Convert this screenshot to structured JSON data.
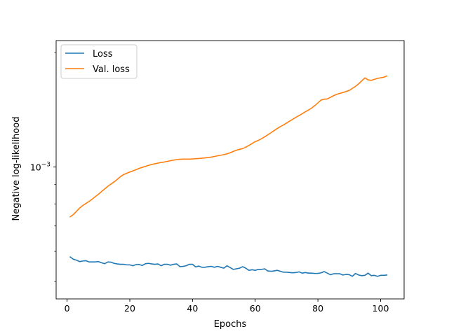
{
  "chart_data": {
    "type": "line",
    "title": "",
    "xlabel": "Epochs",
    "ylabel": "Negative log-likelihood",
    "xlim": [
      -3.5,
      107.5
    ],
    "ylim": [
      0.00045,
      0.00215
    ],
    "yscale": "log",
    "grid": false,
    "legend_position": "top-left",
    "x_ticks": [
      0,
      20,
      40,
      60,
      80,
      100
    ],
    "y_ticks": [
      {
        "value": 0.001,
        "base": "10",
        "exponent": "−3"
      }
    ],
    "series": [
      {
        "name": "Loss",
        "color": "#1f77b4",
        "x": [
          1,
          2,
          3,
          4,
          5,
          6,
          7,
          8,
          9,
          10,
          11,
          12,
          13,
          14,
          15,
          16,
          17,
          18,
          19,
          20,
          21,
          22,
          23,
          24,
          25,
          26,
          27,
          28,
          29,
          30,
          31,
          32,
          33,
          34,
          35,
          36,
          37,
          38,
          39,
          40,
          41,
          42,
          43,
          44,
          45,
          46,
          47,
          48,
          49,
          50,
          51,
          52,
          53,
          54,
          55,
          56,
          57,
          58,
          59,
          60,
          61,
          62,
          63,
          64,
          65,
          66,
          67,
          68,
          69,
          70,
          71,
          72,
          73,
          74,
          75,
          76,
          77,
          78,
          79,
          80,
          81,
          82,
          83,
          84,
          85,
          86,
          87,
          88,
          89,
          90,
          91,
          92,
          93,
          94,
          95,
          96,
          97,
          98,
          99,
          100,
          101,
          102
        ],
        "values": [
          0.00058,
          0.000572,
          0.000569,
          0.000564,
          0.000566,
          0.000567,
          0.000563,
          0.000563,
          0.000563,
          0.000564,
          0.00056,
          0.000557,
          0.000563,
          0.000562,
          0.000558,
          0.000556,
          0.000555,
          0.000555,
          0.000553,
          0.000553,
          0.00055,
          0.000554,
          0.000554,
          0.000551,
          0.000557,
          0.000558,
          0.000556,
          0.000555,
          0.000556,
          0.00055,
          0.000555,
          0.000555,
          0.000552,
          0.000555,
          0.000556,
          0.000547,
          0.000548,
          0.00055,
          0.000555,
          0.000555,
          0.000546,
          0.000549,
          0.000545,
          0.000545,
          0.000547,
          0.000548,
          0.000545,
          0.000548,
          0.000545,
          0.000542,
          0.00055,
          0.000544,
          0.000538,
          0.00054,
          0.000542,
          0.000547,
          0.000542,
          0.000535,
          0.000537,
          0.000535,
          0.000538,
          0.000538,
          0.00054,
          0.000533,
          0.000532,
          0.000533,
          0.000535,
          0.000532,
          0.000529,
          0.000529,
          0.000528,
          0.000527,
          0.000528,
          0.00053,
          0.000526,
          0.000528,
          0.000526,
          0.000526,
          0.000525,
          0.000525,
          0.000527,
          0.000531,
          0.000526,
          0.000521,
          0.000524,
          0.000524,
          0.000524,
          0.00052,
          0.000522,
          0.000521,
          0.000516,
          0.000525,
          0.00052,
          0.000518,
          0.000519,
          0.000526,
          0.000518,
          0.000519,
          0.000516,
          0.000519,
          0.000519,
          0.00052
        ]
      },
      {
        "name": "Val. loss",
        "color": "#ff7f0e",
        "x": [
          1,
          2,
          3,
          4,
          5,
          6,
          7,
          8,
          9,
          10,
          11,
          12,
          13,
          14,
          15,
          16,
          17,
          18,
          19,
          20,
          21,
          22,
          23,
          24,
          25,
          26,
          27,
          28,
          29,
          30,
          31,
          32,
          33,
          34,
          35,
          36,
          37,
          38,
          39,
          40,
          41,
          42,
          43,
          44,
          45,
          46,
          47,
          48,
          49,
          50,
          51,
          52,
          53,
          54,
          55,
          56,
          57,
          58,
          59,
          60,
          61,
          62,
          63,
          64,
          65,
          66,
          67,
          68,
          69,
          70,
          71,
          72,
          73,
          74,
          75,
          76,
          77,
          78,
          79,
          80,
          81,
          82,
          83,
          84,
          85,
          86,
          87,
          88,
          89,
          90,
          91,
          92,
          93,
          94,
          95,
          96,
          97,
          98,
          99,
          100,
          101,
          102
        ],
        "values": [
          0.00074,
          0.00075,
          0.000765,
          0.00078,
          0.000792,
          0.000802,
          0.000812,
          0.000823,
          0.000836,
          0.000848,
          0.000862,
          0.000876,
          0.00089,
          0.000902,
          0.000914,
          0.000928,
          0.000943,
          0.000955,
          0.000963,
          0.00097,
          0.000977,
          0.000984,
          0.000992,
          0.000998,
          0.001004,
          0.00101,
          0.001016,
          0.00102,
          0.001024,
          0.001028,
          0.001031,
          0.001035,
          0.001039,
          0.001043,
          0.001046,
          0.001048,
          0.001049,
          0.001049,
          0.001049,
          0.00105,
          0.001052,
          0.001053,
          0.001055,
          0.001057,
          0.001059,
          0.001062,
          0.001066,
          0.00107,
          0.001074,
          0.001078,
          0.001083,
          0.00109,
          0.001099,
          0.001107,
          0.001113,
          0.001118,
          0.001128,
          0.00114,
          0.001153,
          0.001166,
          0.001175,
          0.001187,
          0.0012,
          0.001215,
          0.00123,
          0.001246,
          0.001262,
          0.001277,
          0.00129,
          0.001305,
          0.001321,
          0.001336,
          0.001351,
          0.001366,
          0.001381,
          0.001397,
          0.001412,
          0.001429,
          0.00145,
          0.001474,
          0.0015,
          0.001508,
          0.00151,
          0.001525,
          0.00154,
          0.001553,
          0.001562,
          0.00157,
          0.00158,
          0.00159,
          0.00161,
          0.00163,
          0.001655,
          0.001685,
          0.001715,
          0.001695,
          0.00169,
          0.0017,
          0.00171,
          0.001716,
          0.001722,
          0.001735
        ]
      }
    ]
  }
}
